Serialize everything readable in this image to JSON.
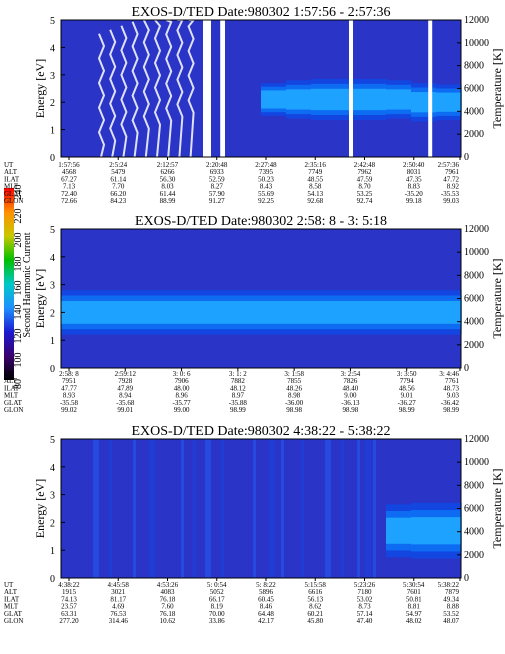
{
  "colors": {
    "background": "#2a35c8",
    "band_inner": "#1ea2ff",
    "band_mid": "#0d6cf2",
    "band_outer": "#1345e0",
    "gap": "#ffffff"
  },
  "colorbar": {
    "label": "Second Harmonic Current",
    "ticks": [
      "80",
      "100",
      "120",
      "140",
      "160",
      "180",
      "200",
      "220",
      "240"
    ],
    "stops": [
      "#000000",
      "#3a0070",
      "#1b1bd0",
      "#1e90ff",
      "#00c8c8",
      "#00c000",
      "#c8c800",
      "#ff9000",
      "#ff0000"
    ]
  },
  "chart_data": [
    {
      "type": "heatmap",
      "title": "EXOS-D/TED   Date:980302  1:57:56 - 2:57:36",
      "ylabel": "Energy [eV]",
      "y2label": "Temperature [K]",
      "ylim": [
        0,
        5
      ],
      "yticks": [
        "0",
        "1",
        "2",
        "3",
        "4",
        "5"
      ],
      "y2lim": [
        0,
        12000
      ],
      "y2ticks": [
        "0",
        "2000",
        "4000",
        "6000",
        "8000",
        "10000",
        "12000"
      ],
      "band_center": [
        null,
        null,
        null,
        null,
        null,
        null,
        null,
        null,
        2.1,
        2.1,
        2.1,
        2.1,
        2.1,
        2.1,
        2.0,
        2.0
      ],
      "band_width": [
        0,
        0,
        0,
        0,
        0,
        0,
        0,
        0,
        0.9,
        1.1,
        1.2,
        1.2,
        1.2,
        1.1,
        1.1,
        1.0
      ],
      "gaps": [
        [
          0.355,
          0.375
        ],
        [
          0.398,
          0.41
        ],
        [
          0.72,
          0.73
        ],
        [
          0.918,
          0.928
        ]
      ],
      "spikes": true,
      "table": {
        "labels": [
          "UT",
          "ALT",
          "ILAT",
          "MLT",
          "GLAT",
          "GLON"
        ],
        "columns": [
          [
            "1:57:56",
            "4568",
            "67.27",
            "7.13",
            "72.40",
            "72.66"
          ],
          [
            "2:5:24",
            "5479",
            "61.14",
            "7.70",
            "66.20",
            "84.23"
          ],
          [
            "2:12:57",
            "6266",
            "56.30",
            "8.03",
            "61.44",
            "88.99"
          ],
          [
            "2:20:48",
            "6933",
            "52.59",
            "8.27",
            "57.90",
            "91.27"
          ],
          [
            "2:27:48",
            "7395",
            "50.23",
            "8.43",
            "55.69",
            "92.25"
          ],
          [
            "2:35:16",
            "7749",
            "48.55",
            "8.58",
            "54.13",
            "92.68"
          ],
          [
            "2:42:48",
            "7962",
            "47.59",
            "8.70",
            "53.25",
            "92.74"
          ],
          [
            "2:50:40",
            "8031",
            "47.35",
            "8.83",
            "-35.20",
            "99.18"
          ],
          [
            "2:57:36",
            "7961",
            "47.72",
            "8.92",
            "-35.53",
            "99.03"
          ]
        ]
      }
    },
    {
      "type": "heatmap",
      "title": "EXOS-D/TED   Date:980302  2:58: 8 - 3: 5:18",
      "ylabel": "Energy [eV]",
      "y2label": "Temperature [K]",
      "ylim": [
        0,
        5
      ],
      "yticks": [
        "0",
        "1",
        "2",
        "3",
        "4",
        "5"
      ],
      "y2lim": [
        0,
        12000
      ],
      "y2ticks": [
        "0",
        "2000",
        "4000",
        "6000",
        "8000",
        "10000",
        "12000"
      ],
      "band_center": [
        2.0,
        2.0,
        2.0,
        2.0,
        2.0,
        2.0,
        2.0,
        2.0,
        2.0,
        2.0,
        2.0,
        2.0,
        2.0,
        2.0,
        2.0,
        2.0
      ],
      "band_width": [
        1.3,
        1.3,
        1.3,
        1.3,
        1.3,
        1.3,
        1.3,
        1.3,
        1.3,
        1.3,
        1.3,
        1.3,
        1.3,
        1.3,
        1.3,
        1.3
      ],
      "gaps": [],
      "spikes": false,
      "table": {
        "labels": [
          "UT",
          "ALT",
          "ILAT",
          "MLT",
          "GLAT",
          "GLON"
        ],
        "columns": [
          [
            "2:58: 8",
            "7951",
            "47.77",
            "8.93",
            "-35.58",
            "99.02"
          ],
          [
            "2:59:12",
            "7928",
            "47.89",
            "8.94",
            "-35.68",
            "99.01"
          ],
          [
            "3: 0: 6",
            "7906",
            "48.00",
            "8.96",
            "-35.77",
            "99.00"
          ],
          [
            "3: 1: 2",
            "7882",
            "48.12",
            "8.97",
            "-35.88",
            "98.99"
          ],
          [
            "3: 1:58",
            "7855",
            "48.26",
            "8.98",
            "-36.00",
            "98.98"
          ],
          [
            "3: 2:54",
            "7826",
            "48.40",
            "9.00",
            "-36.13",
            "98.98"
          ],
          [
            "3: 3:50",
            "7794",
            "48.56",
            "9.01",
            "-36.27",
            "98.99"
          ],
          [
            "3: 4:46",
            "7761",
            "48.73",
            "9.03",
            "-36.42",
            "98.99"
          ]
        ]
      }
    },
    {
      "type": "heatmap",
      "title": "EXOS-D/TED   Date:980302  4:38:22 - 5:38:22",
      "ylabel": "Energy [eV]",
      "y2label": "Temperature [K]",
      "ylim": [
        0,
        5
      ],
      "yticks": [
        "0",
        "1",
        "2",
        "3",
        "4",
        "5"
      ],
      "y2lim": [
        0,
        12000
      ],
      "y2ticks": [
        "0",
        "2000",
        "4000",
        "6000",
        "8000",
        "10000",
        "12000"
      ],
      "band_center": [
        null,
        null,
        null,
        null,
        null,
        null,
        null,
        null,
        null,
        null,
        null,
        null,
        null,
        1.7,
        1.7,
        1.7
      ],
      "band_width": [
        0,
        0,
        0,
        0,
        0,
        0,
        0,
        0,
        0,
        0,
        0,
        0,
        0,
        1.6,
        1.7,
        1.7
      ],
      "gaps": [],
      "spikes": false,
      "streaks": true,
      "table": {
        "labels": [
          "UT",
          "ALT",
          "ILAT",
          "MLT",
          "GLAT",
          "GLON"
        ],
        "columns": [
          [
            "4:38:22",
            "1915",
            "74.13",
            "23.57",
            "63.31",
            "277.20"
          ],
          [
            "4:45:58",
            "3021",
            "81.17",
            "4.69",
            "76.53",
            "314.46"
          ],
          [
            "4:53:26",
            "4083",
            "76.18",
            "7.60",
            "76.18",
            "10.62"
          ],
          [
            "5: 0:54",
            "5052",
            "66.17",
            "8.19",
            "70.00",
            "33.86"
          ],
          [
            "5: 8:22",
            "5896",
            "60.45",
            "8.46",
            "64.48",
            "42.17"
          ],
          [
            "5:15:58",
            "6616",
            "56.13",
            "8.62",
            "60.21",
            "45.80"
          ],
          [
            "5:23:26",
            "7180",
            "53.02",
            "8.73",
            "57.14",
            "47.40"
          ],
          [
            "5:30:54",
            "7601",
            "50.81",
            "8.81",
            "54.97",
            "48.02"
          ],
          [
            "5:38:22",
            "7879",
            "49.34",
            "8.88",
            "53.52",
            "48.07"
          ]
        ]
      }
    }
  ]
}
